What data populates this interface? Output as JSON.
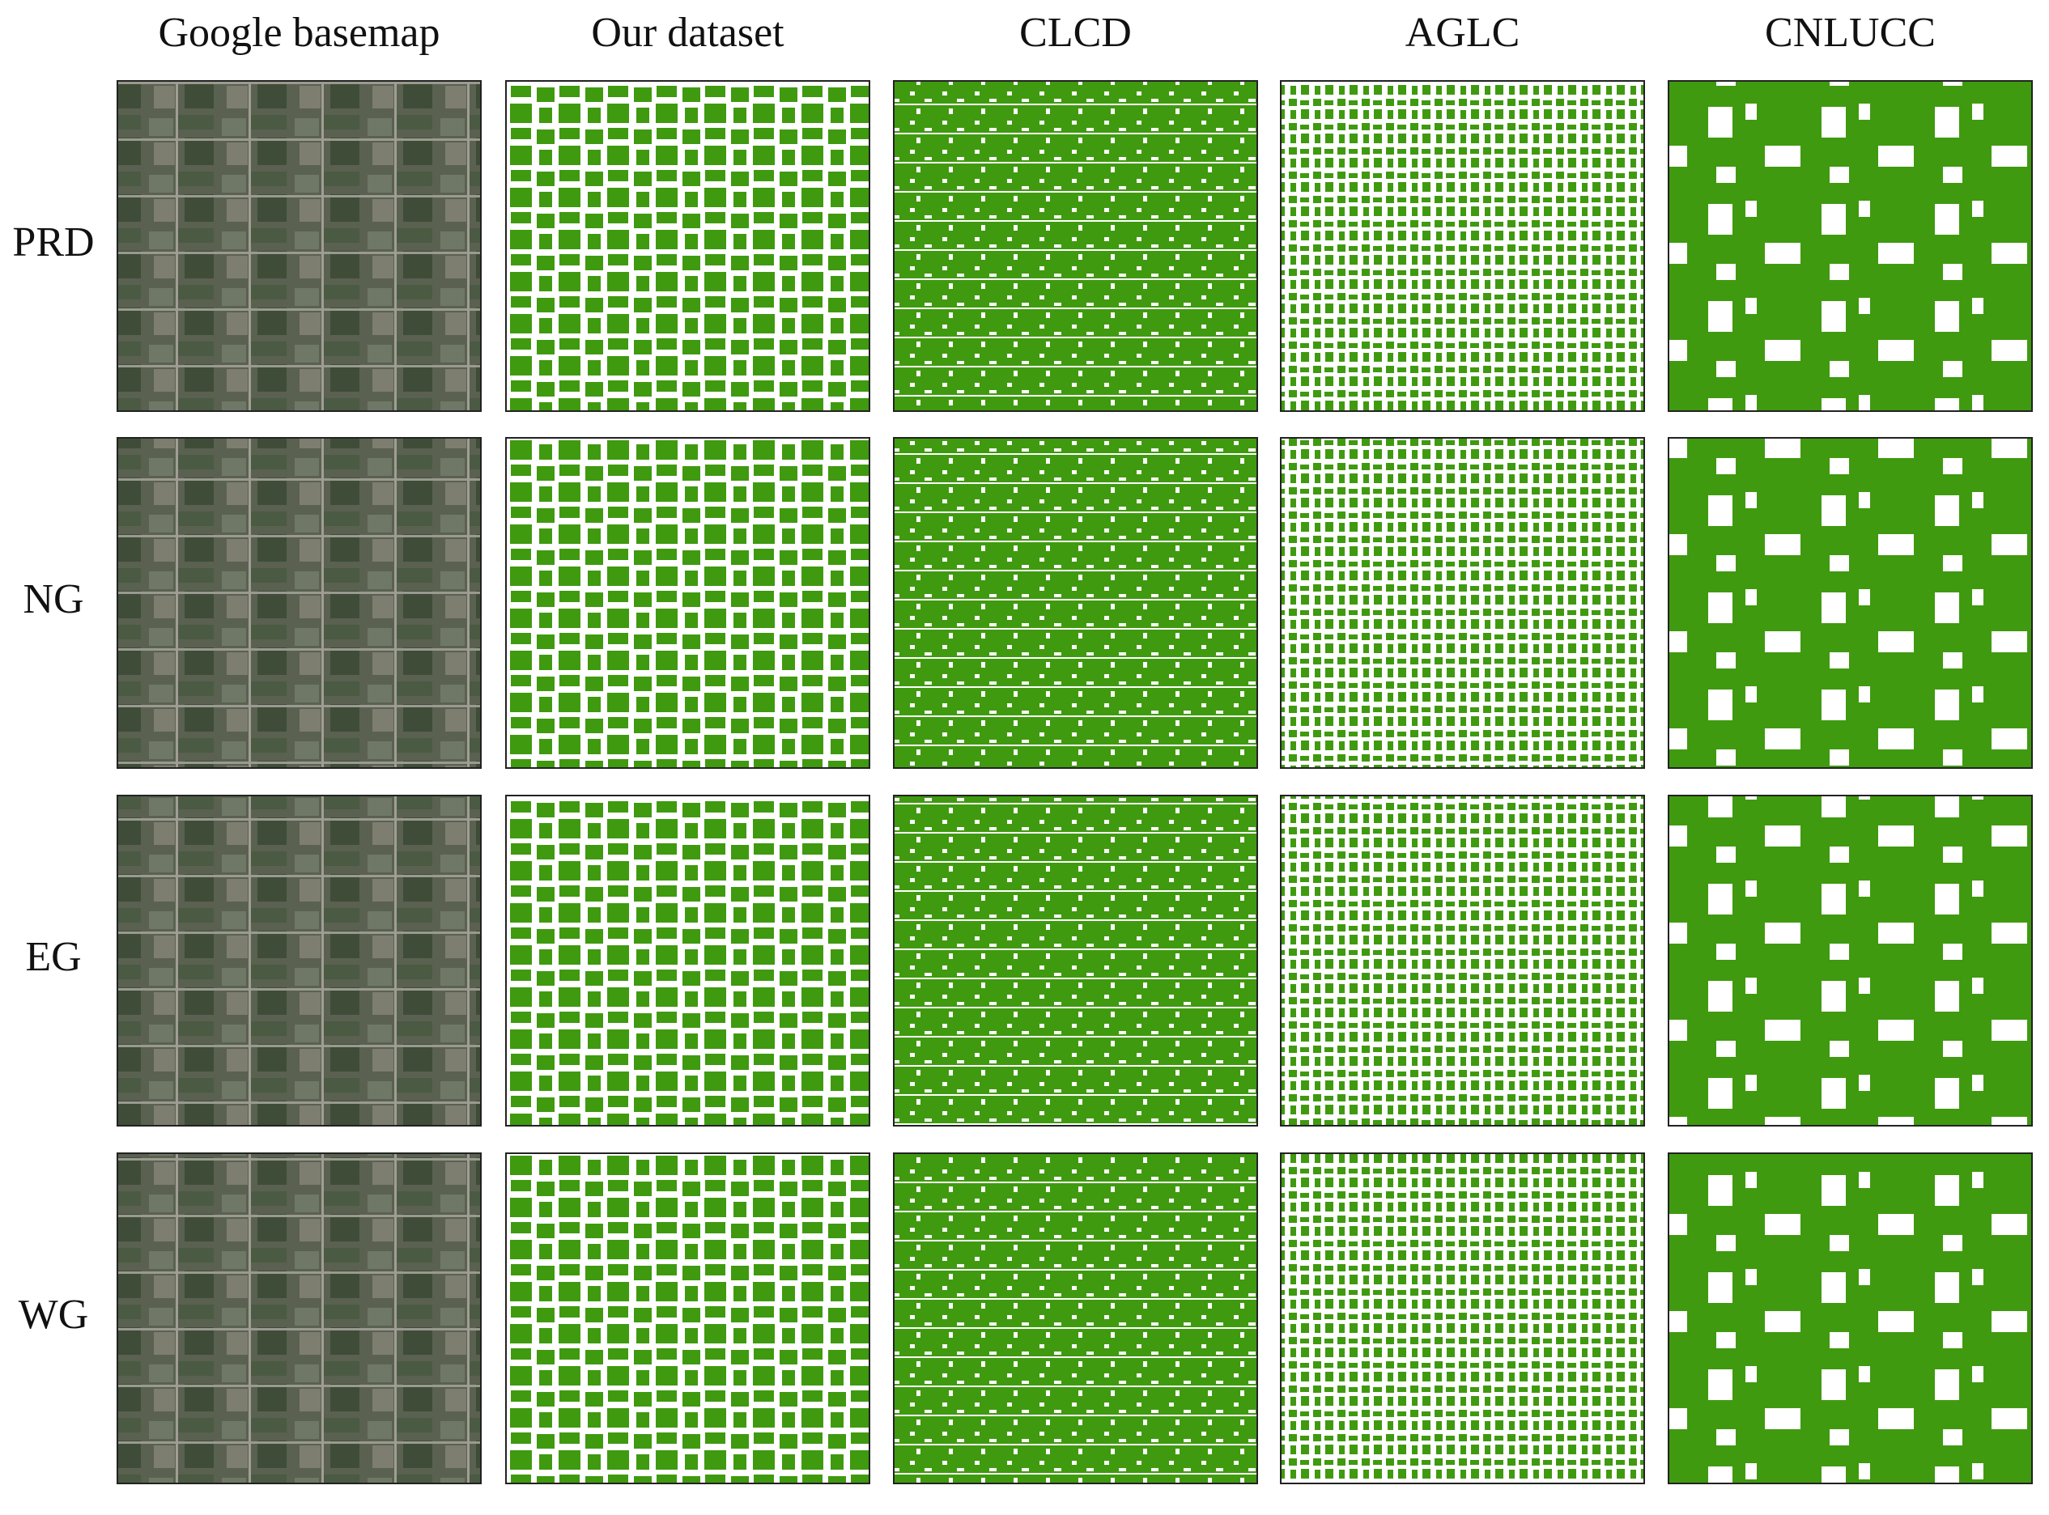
{
  "header": {
    "columns": [
      "Google basemap",
      "Our dataset",
      "CLCD",
      "AGLC",
      "CNLUCC"
    ]
  },
  "rows": {
    "labels": [
      "PRD",
      "NG",
      "EG",
      "WG"
    ]
  }
}
